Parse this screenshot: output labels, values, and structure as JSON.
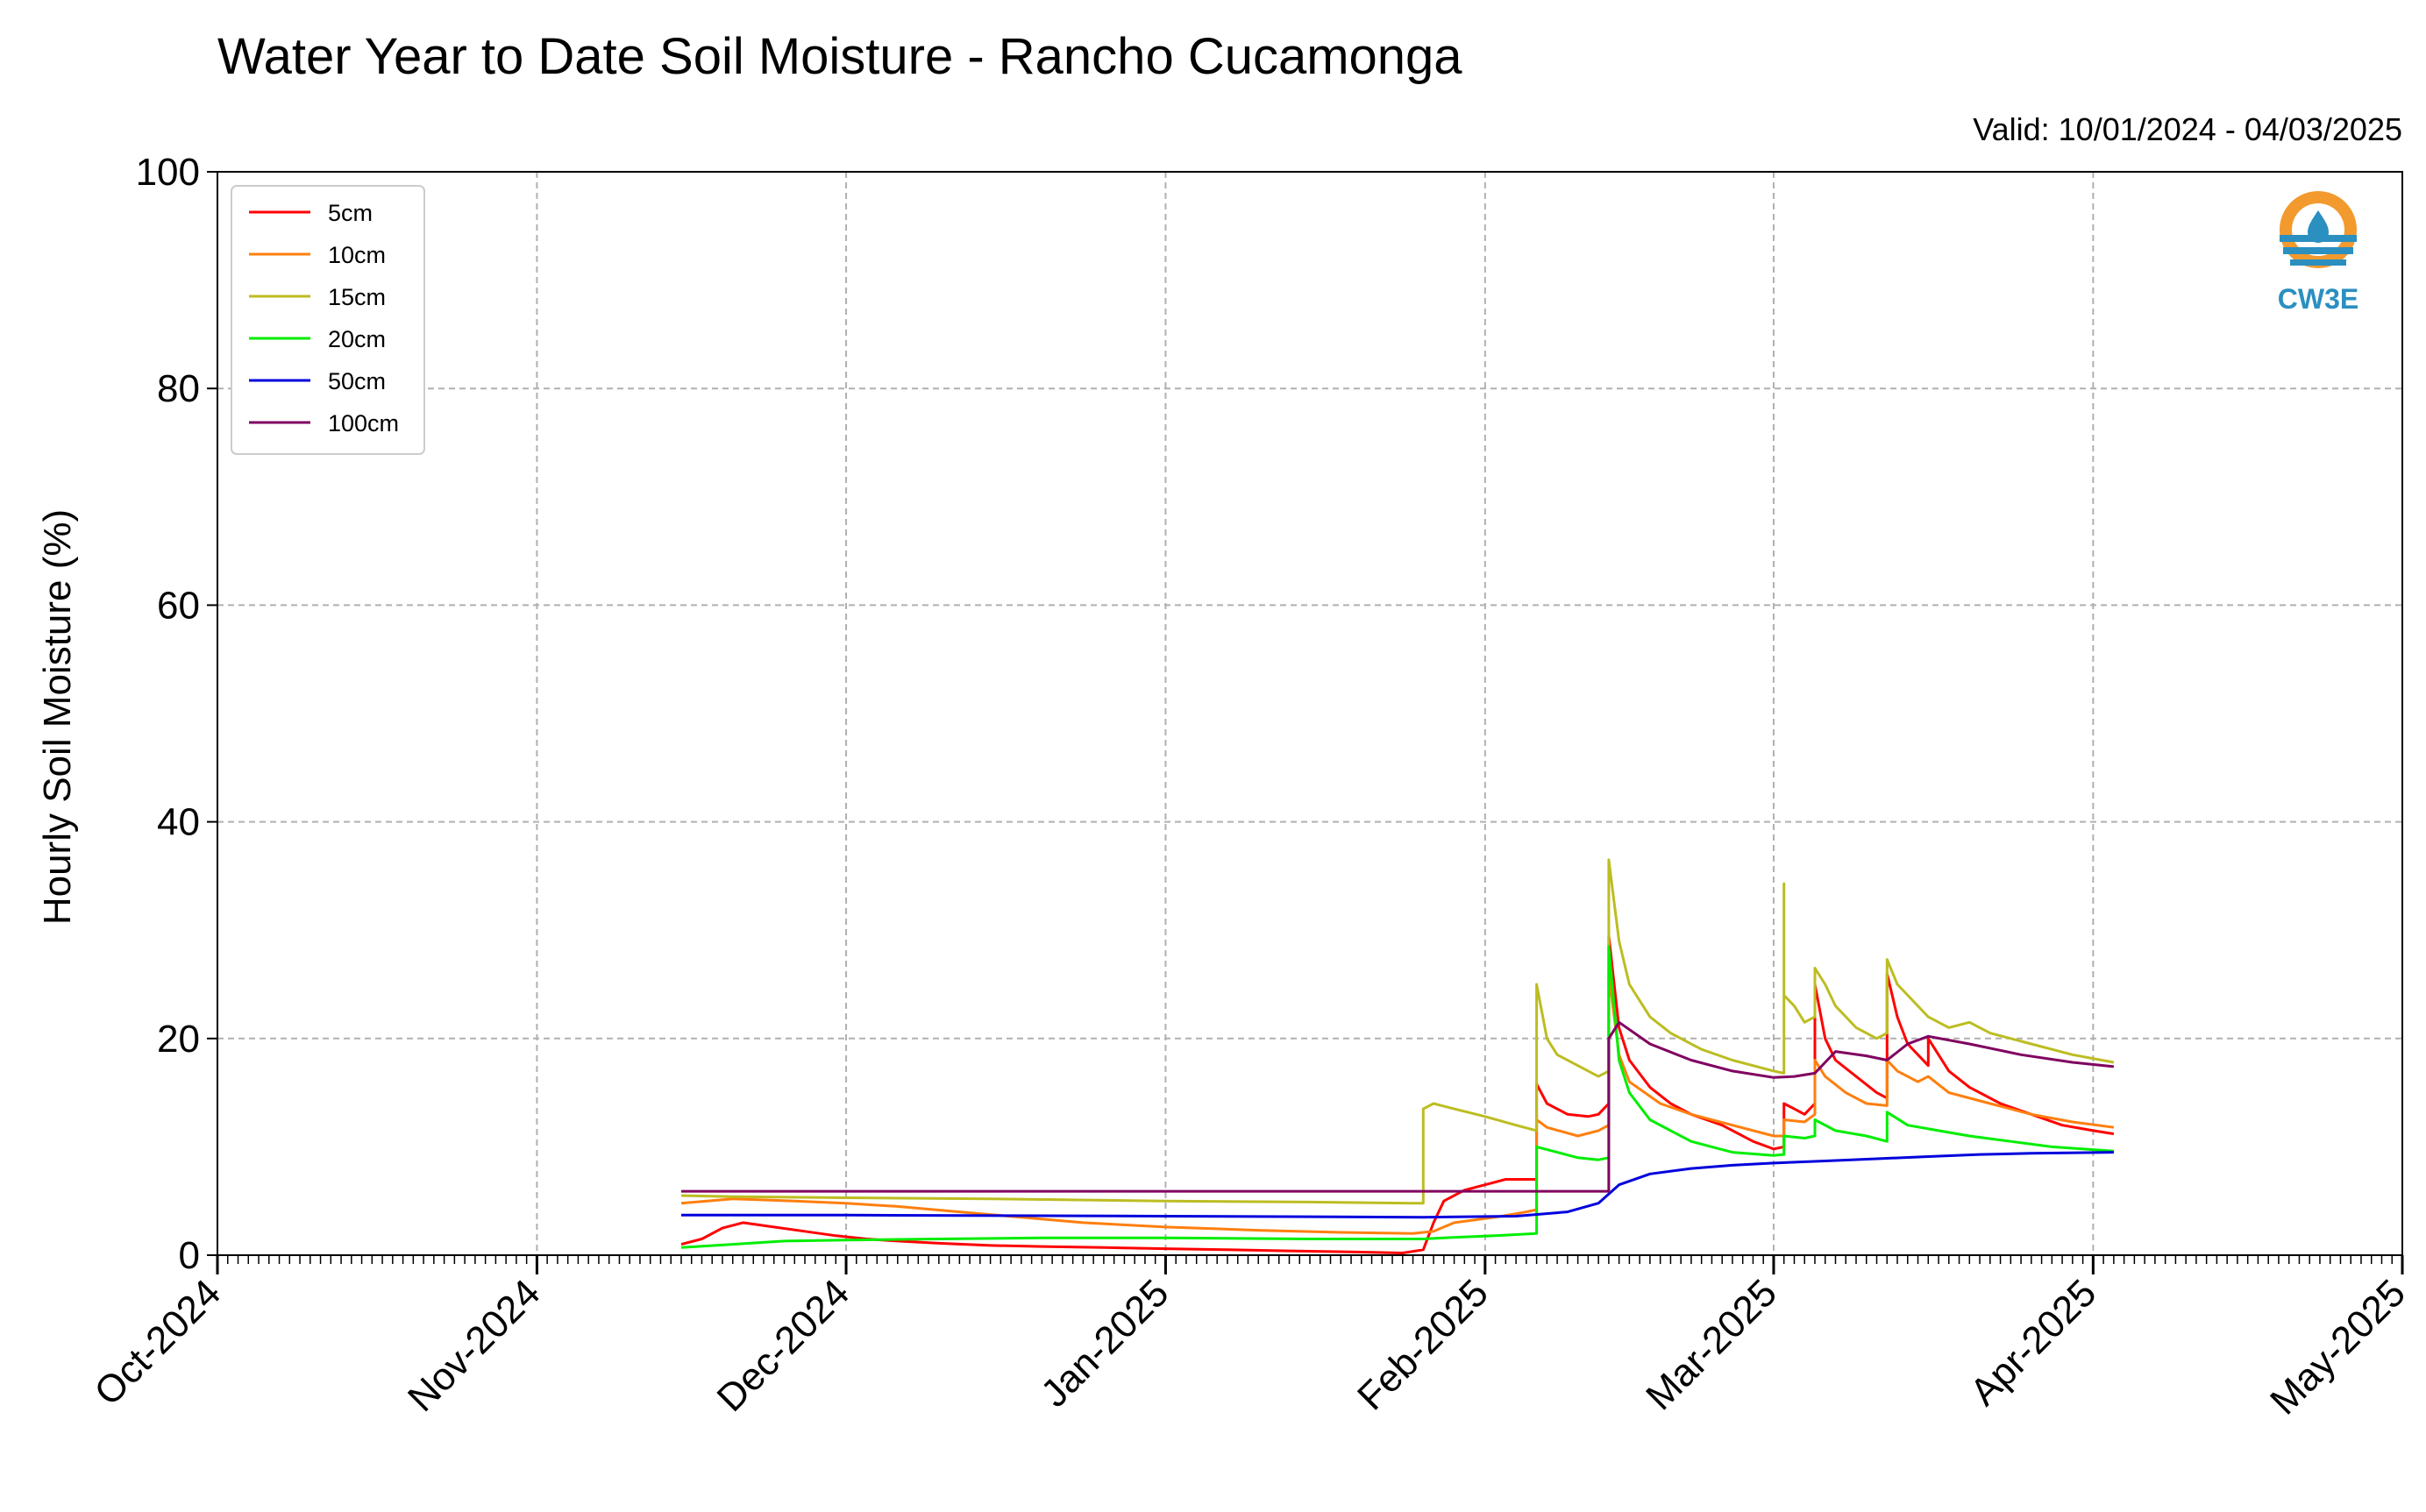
{
  "colors": {
    "5cm": "#ff0000",
    "10cm": "#ff7f0e",
    "15cm": "#bcbd22",
    "20cm": "#00ee00",
    "50cm": "#0000dd",
    "100cm": "#800060",
    "logo_blue": "#2b8fc0",
    "logo_orange": "#f29a2e"
  },
  "logo": {
    "text": "CW3E"
  },
  "chart_data": {
    "type": "line",
    "title": "Water Year to Date Soil Moisture - Rancho Cucamonga",
    "subtitle": "Valid: 10/01/2024 - 04/03/2025",
    "xlabel": "",
    "ylabel": "Hourly Soil Moisture (%)",
    "xlim": [
      "2024-10-01",
      "2025-05-01"
    ],
    "ylim": [
      0,
      100
    ],
    "grid": true,
    "legend_position": "upper-left",
    "x_ticks": [
      {
        "date": "2024-10-01",
        "label": "Oct-2024"
      },
      {
        "date": "2024-11-01",
        "label": "Nov-2024"
      },
      {
        "date": "2024-12-01",
        "label": "Dec-2024"
      },
      {
        "date": "2025-01-01",
        "label": "Jan-2025"
      },
      {
        "date": "2025-02-01",
        "label": "Feb-2025"
      },
      {
        "date": "2025-03-01",
        "label": "Mar-2025"
      },
      {
        "date": "2025-04-01",
        "label": "Apr-2025"
      },
      {
        "date": "2025-05-01",
        "label": "May-2025"
      }
    ],
    "y_ticks": [
      0,
      20,
      40,
      60,
      80,
      100
    ],
    "series": [
      {
        "name": "5cm",
        "points": [
          [
            "2024-11-15",
            1.0
          ],
          [
            "2024-11-17",
            1.5
          ],
          [
            "2024-11-19",
            2.5
          ],
          [
            "2024-11-21",
            3.0
          ],
          [
            "2024-11-24",
            2.6
          ],
          [
            "2024-11-27",
            2.2
          ],
          [
            "2024-11-30",
            1.8
          ],
          [
            "2024-12-03",
            1.5
          ],
          [
            "2024-12-06",
            1.3
          ],
          [
            "2024-12-10",
            1.1
          ],
          [
            "2024-12-15",
            0.9
          ],
          [
            "2024-12-20",
            0.8
          ],
          [
            "2024-12-26",
            0.7
          ],
          [
            "2025-01-01",
            0.6
          ],
          [
            "2025-01-07",
            0.5
          ],
          [
            "2025-01-13",
            0.4
          ],
          [
            "2025-01-19",
            0.3
          ],
          [
            "2025-01-24",
            0.2
          ],
          [
            "2025-01-26",
            0.5
          ],
          [
            "2025-01-27",
            3.0
          ],
          [
            "2025-01-28",
            5.0
          ],
          [
            "2025-01-30",
            6.0
          ],
          [
            "2025-02-01",
            6.5
          ],
          [
            "2025-02-03",
            7.0
          ],
          [
            "2025-02-05",
            7.0
          ],
          [
            "2025-02-06",
            7.0
          ],
          [
            "2025-02-06",
            15.8
          ],
          [
            "2025-02-07",
            14.0
          ],
          [
            "2025-02-09",
            13.0
          ],
          [
            "2025-02-11",
            12.8
          ],
          [
            "2025-02-12",
            13.0
          ],
          [
            "2025-02-13",
            14.0
          ],
          [
            "2025-02-13",
            29.5
          ],
          [
            "2025-02-14",
            21.0
          ],
          [
            "2025-02-15",
            18.0
          ],
          [
            "2025-02-17",
            15.5
          ],
          [
            "2025-02-19",
            14.0
          ],
          [
            "2025-02-21",
            13.0
          ],
          [
            "2025-02-24",
            12.0
          ],
          [
            "2025-02-27",
            10.5
          ],
          [
            "2025-03-01",
            9.8
          ],
          [
            "2025-03-02",
            10.0
          ],
          [
            "2025-03-02",
            14.0
          ],
          [
            "2025-03-03",
            13.5
          ],
          [
            "2025-03-04",
            13.0
          ],
          [
            "2025-03-05",
            14.0
          ],
          [
            "2025-03-05",
            25.0
          ],
          [
            "2025-03-06",
            20.0
          ],
          [
            "2025-03-07",
            18.0
          ],
          [
            "2025-03-09",
            16.5
          ],
          [
            "2025-03-11",
            15.0
          ],
          [
            "2025-03-12",
            14.5
          ],
          [
            "2025-03-12",
            26.0
          ],
          [
            "2025-03-13",
            22.0
          ],
          [
            "2025-03-14",
            19.5
          ],
          [
            "2025-03-15",
            18.5
          ],
          [
            "2025-03-16",
            17.5
          ],
          [
            "2025-03-16",
            20.0
          ],
          [
            "2025-03-18",
            17.0
          ],
          [
            "2025-03-20",
            15.5
          ],
          [
            "2025-03-23",
            14.0
          ],
          [
            "2025-03-26",
            13.0
          ],
          [
            "2025-03-29",
            12.0
          ],
          [
            "2025-04-01",
            11.5
          ],
          [
            "2025-04-03",
            11.2
          ]
        ]
      },
      {
        "name": "10cm",
        "points": [
          [
            "2024-11-15",
            4.8
          ],
          [
            "2024-11-20",
            5.2
          ],
          [
            "2024-11-26",
            5.0
          ],
          [
            "2024-12-01",
            4.8
          ],
          [
            "2024-12-06",
            4.5
          ],
          [
            "2024-12-12",
            4.0
          ],
          [
            "2024-12-18",
            3.5
          ],
          [
            "2024-12-24",
            3.0
          ],
          [
            "2025-01-01",
            2.6
          ],
          [
            "2025-01-10",
            2.3
          ],
          [
            "2025-01-18",
            2.1
          ],
          [
            "2025-01-25",
            2.0
          ],
          [
            "2025-01-27",
            2.2
          ],
          [
            "2025-01-29",
            3.0
          ],
          [
            "2025-02-02",
            3.5
          ],
          [
            "2025-02-05",
            4.0
          ],
          [
            "2025-02-06",
            4.2
          ],
          [
            "2025-02-06",
            12.5
          ],
          [
            "2025-02-07",
            11.8
          ],
          [
            "2025-02-10",
            11.0
          ],
          [
            "2025-02-12",
            11.5
          ],
          [
            "2025-02-13",
            12.0
          ],
          [
            "2025-02-13",
            26.0
          ],
          [
            "2025-02-14",
            18.5
          ],
          [
            "2025-02-15",
            16.0
          ],
          [
            "2025-02-18",
            14.0
          ],
          [
            "2025-02-21",
            13.0
          ],
          [
            "2025-02-25",
            12.0
          ],
          [
            "2025-03-01",
            11.0
          ],
          [
            "2025-03-02",
            11.0
          ],
          [
            "2025-03-02",
            12.5
          ],
          [
            "2025-03-04",
            12.3
          ],
          [
            "2025-03-05",
            13.0
          ],
          [
            "2025-03-05",
            18.0
          ],
          [
            "2025-03-06",
            16.5
          ],
          [
            "2025-03-08",
            15.0
          ],
          [
            "2025-03-10",
            14.0
          ],
          [
            "2025-03-12",
            13.8
          ],
          [
            "2025-03-12",
            18.0
          ],
          [
            "2025-03-13",
            17.0
          ],
          [
            "2025-03-15",
            16.0
          ],
          [
            "2025-03-16",
            16.5
          ],
          [
            "2025-03-18",
            15.0
          ],
          [
            "2025-03-22",
            14.0
          ],
          [
            "2025-03-26",
            13.0
          ],
          [
            "2025-03-30",
            12.3
          ],
          [
            "2025-04-03",
            11.8
          ]
        ]
      },
      {
        "name": "15cm",
        "points": [
          [
            "2024-11-15",
            5.5
          ],
          [
            "2024-11-20",
            5.4
          ],
          [
            "2024-12-01",
            5.3
          ],
          [
            "2024-12-15",
            5.2
          ],
          [
            "2025-01-01",
            5.0
          ],
          [
            "2025-01-15",
            4.9
          ],
          [
            "2025-01-25",
            4.8
          ],
          [
            "2025-01-26",
            4.8
          ],
          [
            "2025-01-26",
            13.5
          ],
          [
            "2025-01-27",
            14.0
          ],
          [
            "2025-01-29",
            13.5
          ],
          [
            "2025-02-01",
            12.8
          ],
          [
            "2025-02-04",
            12.0
          ],
          [
            "2025-02-06",
            11.5
          ],
          [
            "2025-02-06",
            25.0
          ],
          [
            "2025-02-07",
            20.0
          ],
          [
            "2025-02-08",
            18.5
          ],
          [
            "2025-02-10",
            17.5
          ],
          [
            "2025-02-12",
            16.5
          ],
          [
            "2025-02-13",
            17.0
          ],
          [
            "2025-02-13",
            36.5
          ],
          [
            "2025-02-14",
            29.0
          ],
          [
            "2025-02-15",
            25.0
          ],
          [
            "2025-02-17",
            22.0
          ],
          [
            "2025-02-19",
            20.5
          ],
          [
            "2025-02-22",
            19.0
          ],
          [
            "2025-02-25",
            18.0
          ],
          [
            "2025-03-01",
            17.0
          ],
          [
            "2025-03-02",
            16.8
          ],
          [
            "2025-03-02",
            34.3
          ],
          [
            "2025-03-02",
            24.0
          ],
          [
            "2025-03-03",
            23.0
          ],
          [
            "2025-03-04",
            21.5
          ],
          [
            "2025-03-05",
            22.0
          ],
          [
            "2025-03-05",
            26.5
          ],
          [
            "2025-03-06",
            25.0
          ],
          [
            "2025-03-07",
            23.0
          ],
          [
            "2025-03-09",
            21.0
          ],
          [
            "2025-03-11",
            20.0
          ],
          [
            "2025-03-12",
            20.5
          ],
          [
            "2025-03-12",
            27.3
          ],
          [
            "2025-03-13",
            25.0
          ],
          [
            "2025-03-14",
            24.0
          ],
          [
            "2025-03-16",
            22.0
          ],
          [
            "2025-03-18",
            21.0
          ],
          [
            "2025-03-20",
            21.5
          ],
          [
            "2025-03-22",
            20.5
          ],
          [
            "2025-03-26",
            19.5
          ],
          [
            "2025-03-30",
            18.5
          ],
          [
            "2025-04-03",
            17.8
          ]
        ]
      },
      {
        "name": "20cm",
        "points": [
          [
            "2024-11-15",
            0.7
          ],
          [
            "2024-11-20",
            1.0
          ],
          [
            "2024-11-25",
            1.3
          ],
          [
            "2024-12-01",
            1.4
          ],
          [
            "2024-12-10",
            1.5
          ],
          [
            "2024-12-20",
            1.6
          ],
          [
            "2025-01-01",
            1.6
          ],
          [
            "2025-01-15",
            1.5
          ],
          [
            "2025-01-26",
            1.5
          ],
          [
            "2025-01-28",
            1.6
          ],
          [
            "2025-02-02",
            1.8
          ],
          [
            "2025-02-06",
            2.0
          ],
          [
            "2025-02-06",
            10.0
          ],
          [
            "2025-02-08",
            9.5
          ],
          [
            "2025-02-10",
            9.0
          ],
          [
            "2025-02-12",
            8.8
          ],
          [
            "2025-02-13",
            9.0
          ],
          [
            "2025-02-13",
            28.5
          ],
          [
            "2025-02-14",
            18.0
          ],
          [
            "2025-02-15",
            15.0
          ],
          [
            "2025-02-17",
            12.5
          ],
          [
            "2025-02-19",
            11.5
          ],
          [
            "2025-02-21",
            10.5
          ],
          [
            "2025-02-23",
            10.0
          ],
          [
            "2025-02-25",
            9.5
          ],
          [
            "2025-03-01",
            9.2
          ],
          [
            "2025-03-02",
            9.3
          ],
          [
            "2025-03-02",
            11.0
          ],
          [
            "2025-03-04",
            10.8
          ],
          [
            "2025-03-05",
            11.0
          ],
          [
            "2025-03-05",
            12.5
          ],
          [
            "2025-03-07",
            11.5
          ],
          [
            "2025-03-10",
            11.0
          ],
          [
            "2025-03-12",
            10.5
          ],
          [
            "2025-03-12",
            13.2
          ],
          [
            "2025-03-14",
            12.0
          ],
          [
            "2025-03-17",
            11.5
          ],
          [
            "2025-03-20",
            11.0
          ],
          [
            "2025-03-24",
            10.5
          ],
          [
            "2025-03-28",
            10.0
          ],
          [
            "2025-04-03",
            9.6
          ]
        ]
      },
      {
        "name": "50cm",
        "points": [
          [
            "2024-11-15",
            3.7
          ],
          [
            "2024-12-01",
            3.7
          ],
          [
            "2025-01-01",
            3.6
          ],
          [
            "2025-01-26",
            3.5
          ],
          [
            "2025-02-04",
            3.6
          ],
          [
            "2025-02-09",
            4.0
          ],
          [
            "2025-02-12",
            4.8
          ],
          [
            "2025-02-14",
            6.5
          ],
          [
            "2025-02-17",
            7.5
          ],
          [
            "2025-02-21",
            8.0
          ],
          [
            "2025-02-25",
            8.3
          ],
          [
            "2025-03-01",
            8.5
          ],
          [
            "2025-03-06",
            8.7
          ],
          [
            "2025-03-11",
            8.9
          ],
          [
            "2025-03-16",
            9.1
          ],
          [
            "2025-03-21",
            9.3
          ],
          [
            "2025-03-26",
            9.4
          ],
          [
            "2025-04-03",
            9.5
          ]
        ]
      },
      {
        "name": "100cm",
        "points": [
          [
            "2024-11-15",
            5.9
          ],
          [
            "2024-12-15",
            5.9
          ],
          [
            "2025-01-15",
            5.9
          ],
          [
            "2025-02-13",
            5.9
          ],
          [
            "2025-02-13",
            20.0
          ],
          [
            "2025-02-14",
            21.5
          ],
          [
            "2025-02-17",
            19.5
          ],
          [
            "2025-02-21",
            18.0
          ],
          [
            "2025-02-25",
            17.0
          ],
          [
            "2025-03-01",
            16.4
          ],
          [
            "2025-03-03",
            16.5
          ],
          [
            "2025-03-05",
            16.8
          ],
          [
            "2025-03-07",
            18.8
          ],
          [
            "2025-03-10",
            18.4
          ],
          [
            "2025-03-12",
            18.0
          ],
          [
            "2025-03-14",
            19.5
          ],
          [
            "2025-03-16",
            20.2
          ],
          [
            "2025-03-20",
            19.5
          ],
          [
            "2025-03-25",
            18.5
          ],
          [
            "2025-03-30",
            17.8
          ],
          [
            "2025-04-03",
            17.4
          ]
        ]
      }
    ]
  }
}
